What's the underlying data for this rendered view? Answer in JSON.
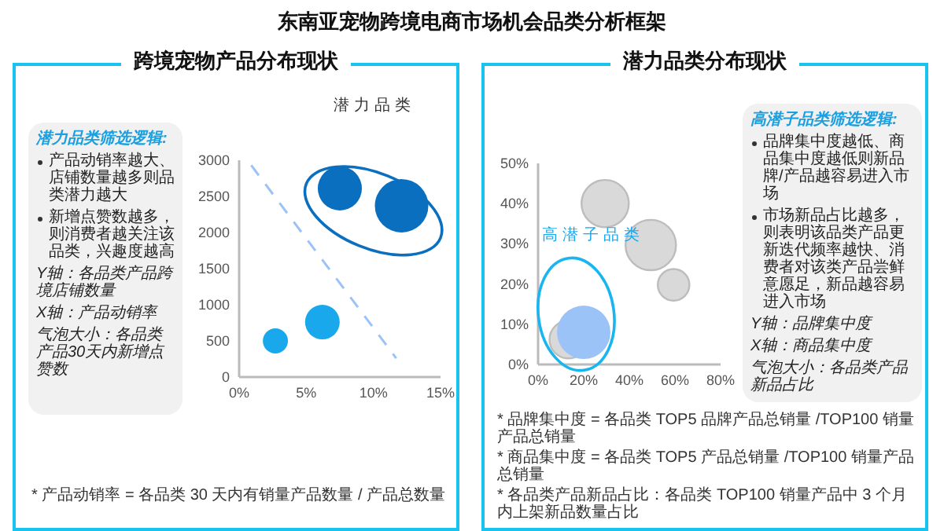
{
  "chart_data": [
    {
      "type": "bubble",
      "title": "东南亚宠物跨境电商市场机会品类分析框架",
      "subtitle": "跨境宠物产品分布现状",
      "series": [
        {
          "color": "#0b6fc0",
          "x": [
            7.5,
            12.1
          ],
          "values": [
            2610,
            2370
          ],
          "sizes": [
            0.68,
            1
          ]
        },
        {
          "color": "#1aa8ec",
          "x": [
            6.2,
            2.7
          ],
          "values": [
            760,
            500
          ],
          "sizes": [
            0.42,
            0.22
          ]
        },
        {
          "type": "line",
          "color": "#9cc3f7",
          "line_style": "dashed",
          "x": [
            0.9,
            11.7
          ],
          "values": [
            2930,
            260
          ]
        }
      ],
      "xlim": [
        0,
        15
      ],
      "xticks": [
        {
          "value": 0,
          "label": "0%"
        },
        {
          "value": 5,
          "label": "5%"
        },
        {
          "value": 10,
          "label": "10%"
        },
        {
          "value": 15,
          "label": "15%"
        }
      ],
      "ylim": [
        0,
        3000
      ],
      "yticks": [
        0,
        500,
        1000,
        1500,
        2000,
        2500,
        3000
      ],
      "annotations": [
        "潜力品类筛选逻辑:",
        "产品动销率越大、店铺数量越多则品类潜力越大",
        "新增点赞数越多，则消费者越关注该品类，兴趣度越高",
        "Y轴：各品类产品跨境店铺数量",
        "X轴：产品动销率",
        "气泡大小：各品类产品30天内新增点赞数",
        "* 产品动销率 = 各品类 30 天内有销量产品数量 / 产品总数量",
        "潜力品类"
      ]
    },
    {
      "type": "bubble",
      "subtitle": "潜力品类分布现状",
      "series": [
        {
          "color": "#d9d9d9",
          "x": [
            29.4,
            49.4,
            59.4,
            13.3
          ],
          "values": [
            40,
            29.7,
            19.8,
            6.2
          ],
          "sizes": [
            0.78,
            0.89,
            0.35,
            0.5
          ]
        },
        {
          "color": "#9cc3f7",
          "x": [
            20
          ],
          "values": [
            8
          ],
          "sizes": [
            1
          ]
        }
      ],
      "xlim": [
        0,
        80
      ],
      "xticks": [
        {
          "value": 0,
          "label": "0%"
        },
        {
          "value": 20,
          "label": "20%"
        },
        {
          "value": 40,
          "label": "40%"
        },
        {
          "value": 60,
          "label": "60%"
        },
        {
          "value": 80,
          "label": "80%"
        }
      ],
      "ylim": [
        0,
        50
      ],
      "yticks": [
        {
          "value": 0,
          "label": "0%"
        },
        {
          "value": 10,
          "label": "10%"
        },
        {
          "value": 20,
          "label": "20%"
        },
        {
          "value": 30,
          "label": "30%"
        },
        {
          "value": 40,
          "label": "40%"
        },
        {
          "value": 50,
          "label": "50%"
        }
      ],
      "annotations": [
        "高潜子品类筛选逻辑:",
        "品牌集中度越低、商品集中度越低则新品牌/产品越容易进入市场",
        "市场新品占比越多，则表明该品类产品更新迭代频率越快、消费者对该类产品尝鲜意愿足，新品越容易进入市场",
        "Y轴：品牌集中度",
        "X轴：商品集中度",
        "气泡大小：各品类产品新品占比",
        "* 品牌集中度 = 各品类 TOP5 品牌产品总销量 /TOP100 销量产品总销量",
        "* 商品集中度 = 各品类 TOP5 产品总销量 /TOP100 销量产品总销量",
        "* 各品类产品新品占比：各品类 TOP100 销量产品中 3 个月内上架新品数量占比",
        "高潜子品类"
      ]
    }
  ]
}
